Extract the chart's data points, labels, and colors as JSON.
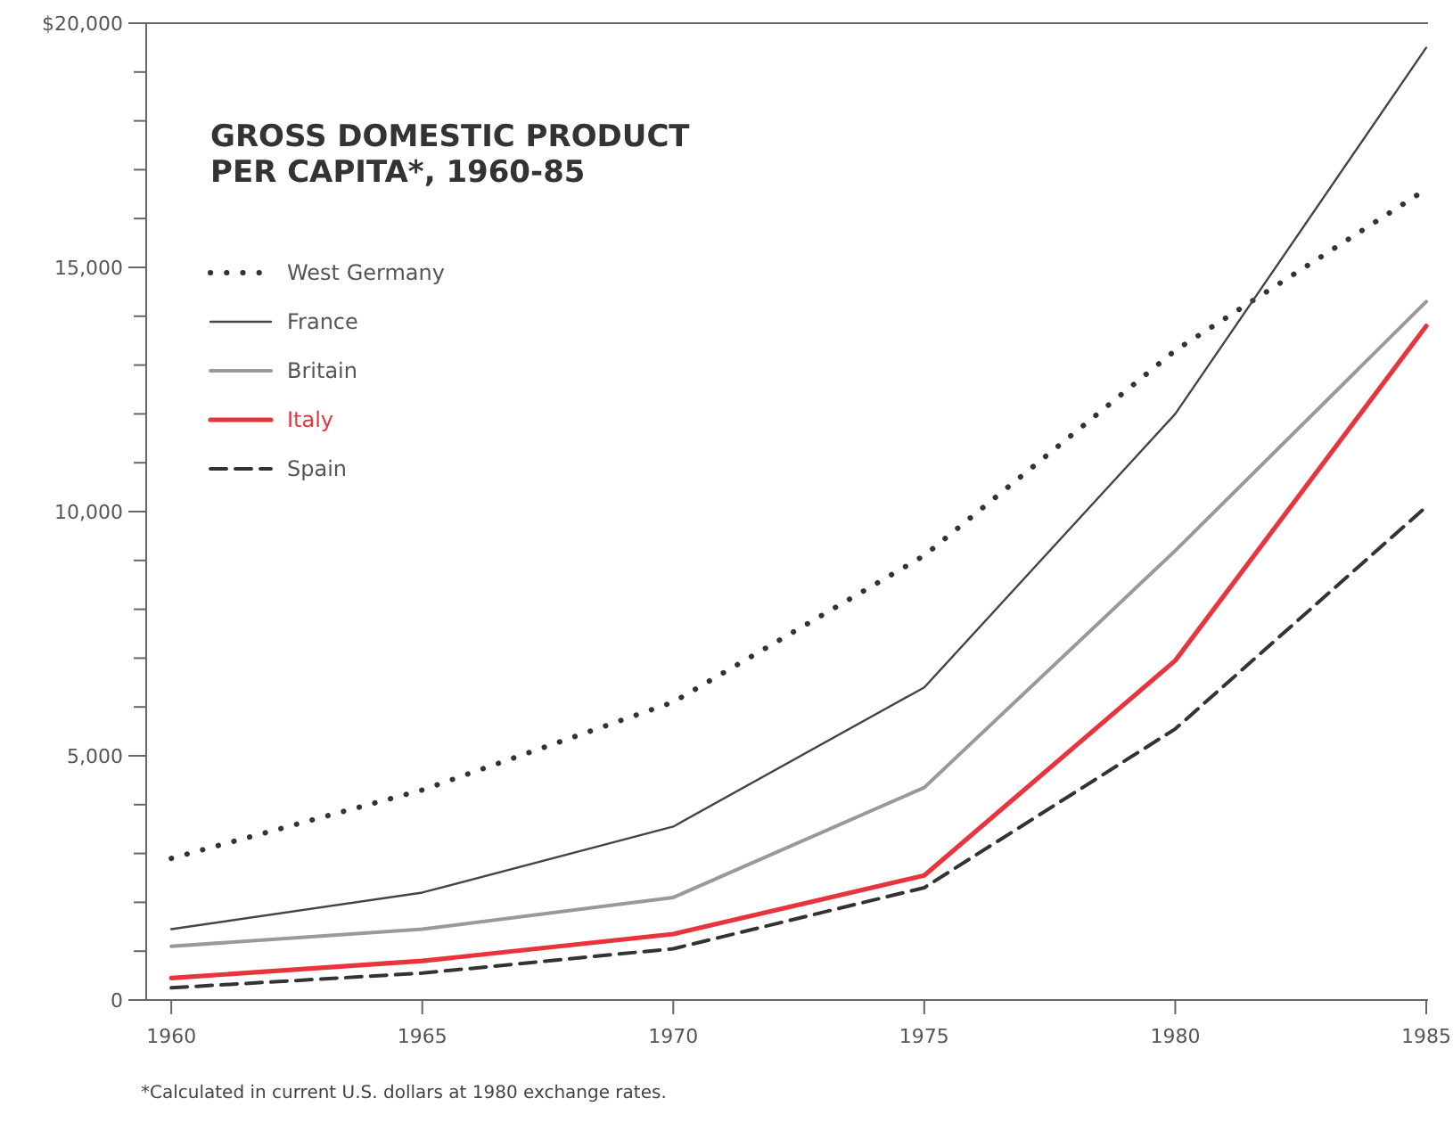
{
  "chart_data": {
    "type": "line",
    "title": "GROSS DOMESTIC PRODUCT\nPER CAPITA*, 1960-85",
    "x": [
      1960,
      1965,
      1970,
      1975,
      1980,
      1985
    ],
    "xlim": [
      1959.5,
      1985
    ],
    "xticks": [
      1960,
      1965,
      1970,
      1975,
      1980,
      1985
    ],
    "ylim": [
      0,
      20000
    ],
    "yticks": [
      {
        "value": 0,
        "label": "0"
      },
      {
        "value": 1000,
        "label": null
      },
      {
        "value": 2000,
        "label": null
      },
      {
        "value": 3000,
        "label": null
      },
      {
        "value": 4000,
        "label": null
      },
      {
        "value": 5000,
        "label": "5,000"
      },
      {
        "value": 6000,
        "label": null
      },
      {
        "value": 7000,
        "label": null
      },
      {
        "value": 8000,
        "label": null
      },
      {
        "value": 9000,
        "label": null
      },
      {
        "value": 10000,
        "label": "10,000"
      },
      {
        "value": 11000,
        "label": null
      },
      {
        "value": 12000,
        "label": null
      },
      {
        "value": 13000,
        "label": null
      },
      {
        "value": 14000,
        "label": null
      },
      {
        "value": 15000,
        "label": "15,000"
      },
      {
        "value": 16000,
        "label": null
      },
      {
        "value": 17000,
        "label": null
      },
      {
        "value": 18000,
        "label": null
      },
      {
        "value": 19000,
        "label": null
      },
      {
        "value": 20000,
        "label": "$20,000"
      }
    ],
    "grid": false,
    "legend": "top left",
    "marker": "none",
    "series": [
      {
        "name": "West Germany",
        "color": "#333333",
        "line_style": "dotted",
        "values": [
          2900,
          4300,
          6100,
          9100,
          13300,
          16600
        ]
      },
      {
        "name": "France",
        "color": "#444444",
        "line_style": "solid",
        "values": [
          1450,
          2200,
          3550,
          6400,
          12000,
          19500
        ]
      },
      {
        "name": "Britain",
        "color": "#999999",
        "line_style": "solid",
        "values": [
          1100,
          1450,
          2100,
          4350,
          9200,
          14300
        ]
      },
      {
        "name": "Italy",
        "color": "#e8343c",
        "line_style": "solid",
        "values": [
          450,
          800,
          1350,
          2550,
          6950,
          13800
        ]
      },
      {
        "name": "Spain",
        "color": "#333333",
        "line_style": "dashed",
        "values": [
          250,
          550,
          1050,
          2300,
          5550,
          10100
        ]
      }
    ],
    "annotations": [
      "*Calculated in current U.S. dollars at 1980 exchange rates."
    ]
  }
}
